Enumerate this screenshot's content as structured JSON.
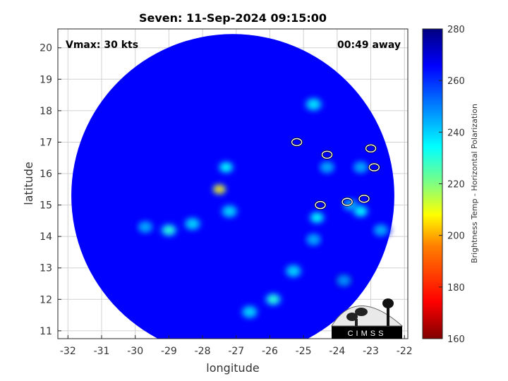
{
  "chart_data": {
    "type": "heatmap",
    "title": "Seven: 11-Sep-2024 09:15:00",
    "xlabel": "longitude",
    "ylabel": "latitude",
    "xlim": [
      -32.3,
      -21.9
    ],
    "ylim": [
      10.75,
      20.6
    ],
    "xticks": [
      -32,
      -31,
      -30,
      -29,
      -28,
      -27,
      -26,
      -25,
      -24,
      -23,
      -22
    ],
    "yticks": [
      11,
      12,
      13,
      14,
      15,
      16,
      17,
      18,
      19,
      20
    ],
    "grid": true,
    "annotations": {
      "vmax": "Vmax: 30 kts",
      "time_away": "00:49 away"
    },
    "colorbar": {
      "label": "Brightness Temp - Horizontal Polarization",
      "range": [
        160,
        280
      ],
      "ticks": [
        160,
        180,
        200,
        220,
        240,
        260,
        280
      ],
      "colormap": [
        "#800000",
        "#ff0000",
        "#ff8000",
        "#ffff00",
        "#80ff80",
        "#00ffff",
        "#0080ff",
        "#0000ff",
        "#000080"
      ]
    },
    "swath": {
      "center_lon": -27.1,
      "center_lat": 15.3,
      "radius_deg": 4.8,
      "background_temp": 265
    },
    "features": [
      {
        "lon": -27.5,
        "lat": 15.5,
        "temp": 195
      },
      {
        "lon": -27.3,
        "lat": 16.2,
        "temp": 235
      },
      {
        "lon": -27.2,
        "lat": 14.8,
        "temp": 240
      },
      {
        "lon": -28.3,
        "lat": 14.4,
        "temp": 240
      },
      {
        "lon": -29.0,
        "lat": 14.2,
        "temp": 230
      },
      {
        "lon": -29.7,
        "lat": 14.3,
        "temp": 245
      },
      {
        "lon": -25.3,
        "lat": 12.9,
        "temp": 240
      },
      {
        "lon": -25.9,
        "lat": 12.0,
        "temp": 230
      },
      {
        "lon": -26.6,
        "lat": 11.6,
        "temp": 240
      },
      {
        "lon": -24.6,
        "lat": 14.6,
        "temp": 235
      },
      {
        "lon": -23.6,
        "lat": 15.0,
        "temp": 245
      },
      {
        "lon": -23.3,
        "lat": 14.8,
        "temp": 235
      },
      {
        "lon": -24.7,
        "lat": 13.9,
        "temp": 245
      },
      {
        "lon": -23.3,
        "lat": 16.2,
        "temp": 245
      },
      {
        "lon": -24.3,
        "lat": 16.2,
        "temp": 245
      },
      {
        "lon": -24.7,
        "lat": 18.2,
        "temp": 238
      },
      {
        "lon": -23.8,
        "lat": 12.6,
        "temp": 248
      },
      {
        "lon": -22.7,
        "lat": 14.2,
        "temp": 245
      }
    ],
    "contours": [
      {
        "lon": -25.2,
        "lat": 17.0
      },
      {
        "lon": -24.3,
        "lat": 16.6
      },
      {
        "lon": -23.0,
        "lat": 16.8
      },
      {
        "lon": -22.9,
        "lat": 16.2
      },
      {
        "lon": -24.5,
        "lat": 15.0
      },
      {
        "lon": -23.7,
        "lat": 15.1
      },
      {
        "lon": -23.2,
        "lat": 15.2
      }
    ]
  },
  "logo": {
    "text": "CIMSS"
  }
}
